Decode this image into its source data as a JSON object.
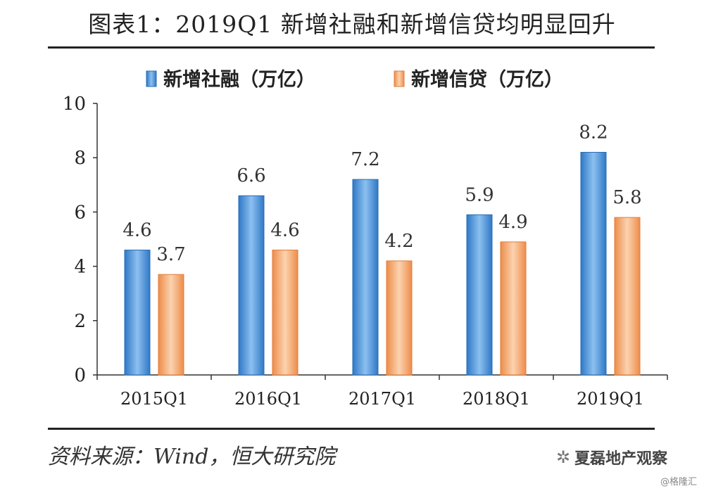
{
  "header": {
    "title": "图表1：2019Q1 新增社融和新增信贷均明显回升"
  },
  "footer": {
    "source": "资料来源：Wind，恒大研究院",
    "brand": "夏磊地产观察",
    "credit": "@格隆汇"
  },
  "colors": {
    "series1": "#4a8fd6",
    "series2": "#f3a56c"
  },
  "chart_data": {
    "type": "bar",
    "categories": [
      "2015Q1",
      "2016Q1",
      "2017Q1",
      "2018Q1",
      "2019Q1"
    ],
    "series": [
      {
        "name": "新增社融（万亿）",
        "values": [
          4.6,
          6.6,
          7.2,
          5.9,
          8.2
        ],
        "labels": [
          "4.6",
          "6.6",
          "7.2",
          "5.9",
          "8.2"
        ]
      },
      {
        "name": "新增信贷（万亿）",
        "values": [
          3.7,
          4.6,
          4.2,
          4.9,
          5.8
        ],
        "labels": [
          "3.7",
          "4.6",
          "4.2",
          "4.9",
          "5.8"
        ]
      }
    ],
    "ylim": [
      0,
      10
    ],
    "yticks": [
      "0",
      "2",
      "4",
      "6",
      "8",
      "10"
    ],
    "legend": "top-center",
    "grid": false
  }
}
